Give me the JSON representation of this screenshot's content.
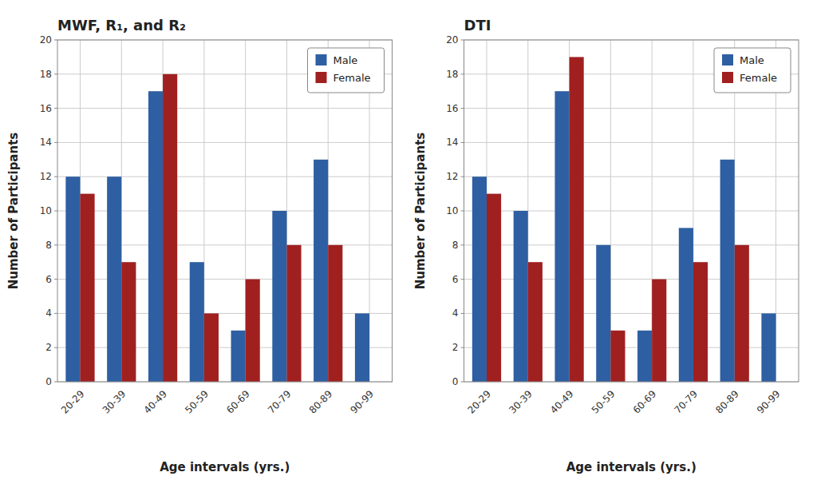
{
  "chart_data": [
    {
      "type": "bar",
      "title": "MWF, R₁, and R₂",
      "categories": [
        "20-29",
        "30-39",
        "40-49",
        "50-59",
        "60-69",
        "70-79",
        "80-89",
        "90-99"
      ],
      "series": [
        {
          "name": "Male",
          "color": "#2E5FA3",
          "values": [
            12,
            12,
            17,
            7,
            3,
            10,
            13,
            4
          ]
        },
        {
          "name": "Female",
          "color": "#A02020",
          "values": [
            11,
            7,
            18,
            4,
            6,
            8,
            8,
            0
          ]
        }
      ],
      "xlabel": "Age intervals (yrs.)",
      "ylabel": "Number of Participants",
      "ylim": [
        0,
        20
      ],
      "yticks": [
        0,
        2,
        4,
        6,
        8,
        10,
        12,
        14,
        16,
        18,
        20
      ],
      "grid": true,
      "legend": "upper right"
    },
    {
      "type": "bar",
      "title": "DTI",
      "categories": [
        "20-29",
        "30-39",
        "40-49",
        "50-59",
        "60-69",
        "70-79",
        "80-89",
        "90-99"
      ],
      "series": [
        {
          "name": "Male",
          "color": "#2E5FA3",
          "values": [
            12,
            10,
            17,
            8,
            3,
            9,
            13,
            4
          ]
        },
        {
          "name": "Female",
          "color": "#A02020",
          "values": [
            11,
            7,
            19,
            3,
            6,
            7,
            8,
            0
          ]
        }
      ],
      "xlabel": "Age intervals (yrs.)",
      "ylabel": "Number of Participants",
      "ylim": [
        0,
        20
      ],
      "yticks": [
        0,
        2,
        4,
        6,
        8,
        10,
        12,
        14,
        16,
        18,
        20
      ],
      "grid": true,
      "legend": "upper right"
    }
  ]
}
